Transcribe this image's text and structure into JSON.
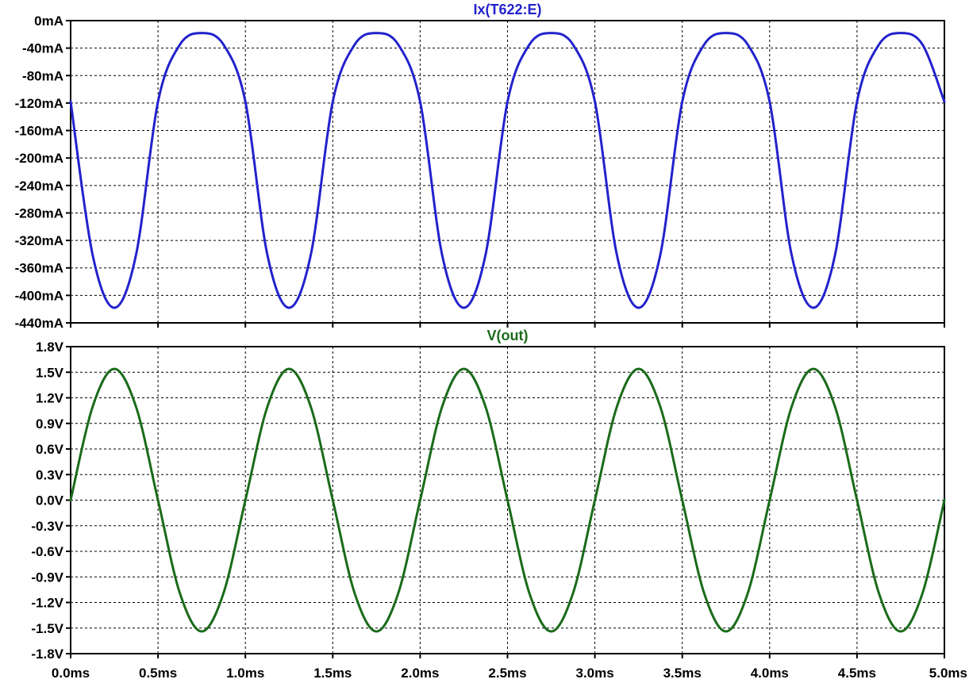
{
  "colors": {
    "background": "#ffffff",
    "axis": "#000000",
    "grid": "#000000"
  },
  "chart_data": [
    {
      "type": "line",
      "title": "Ix(T622:E)",
      "title_color": "#2222cc",
      "xlim": [
        0.0,
        5.0
      ],
      "ylim": [
        -440,
        0
      ],
      "x_tick_values": [
        0.0,
        0.5,
        1.0,
        1.5,
        2.0,
        2.5,
        3.0,
        3.5,
        4.0,
        4.5,
        5.0
      ],
      "y_tick_values": [
        0,
        -40,
        -80,
        -120,
        -160,
        -200,
        -240,
        -280,
        -320,
        -360,
        -400,
        -440
      ],
      "y_tick_labels": [
        "0mA",
        "-40mA",
        "-80mA",
        "-120mA",
        "-160mA",
        "-200mA",
        "-240mA",
        "-280mA",
        "-320mA",
        "-360mA",
        "-400mA",
        "-440mA"
      ],
      "grid": true,
      "series": [
        {
          "color": "#2222cc",
          "x": [
            0.0,
            0.125,
            0.25,
            0.375,
            0.5,
            0.625,
            0.75,
            0.875,
            1.0,
            1.125,
            1.25,
            1.375,
            1.5,
            1.625,
            1.75,
            1.875,
            2.0,
            2.125,
            2.25,
            2.375,
            2.5,
            2.625,
            2.75,
            2.875,
            3.0,
            3.125,
            3.25,
            3.375,
            3.5,
            3.625,
            3.75,
            3.875,
            4.0,
            4.125,
            4.25,
            4.375,
            4.5,
            4.625,
            4.75,
            4.875,
            5.0
          ],
          "values": [
            -118,
            -340,
            -418,
            -340,
            -118,
            -35,
            -18,
            -35,
            -118,
            -340,
            -418,
            -340,
            -118,
            -35,
            -18,
            -35,
            -118,
            -340,
            -418,
            -340,
            -118,
            -35,
            -18,
            -35,
            -118,
            -340,
            -418,
            -340,
            -118,
            -35,
            -18,
            -35,
            -118,
            -340,
            -418,
            -340,
            -118,
            -35,
            -18,
            -35,
            -118
          ]
        }
      ]
    },
    {
      "type": "line",
      "title": "V(out)",
      "title_color": "#1a6b1a",
      "xlim": [
        0.0,
        5.0
      ],
      "ylim": [
        -1.8,
        1.8
      ],
      "x_tick_values": [
        0.0,
        0.5,
        1.0,
        1.5,
        2.0,
        2.5,
        3.0,
        3.5,
        4.0,
        4.5,
        5.0
      ],
      "x_tick_labels": [
        "0.0ms",
        "0.5ms",
        "1.0ms",
        "1.5ms",
        "2.0ms",
        "2.5ms",
        "3.0ms",
        "3.5ms",
        "4.0ms",
        "4.5ms",
        "5.0ms"
      ],
      "y_tick_values": [
        1.8,
        1.5,
        1.2,
        0.9,
        0.6,
        0.3,
        0.0,
        -0.3,
        -0.6,
        -0.9,
        -1.2,
        -1.5,
        -1.8
      ],
      "y_tick_labels": [
        "1.8V",
        "1.5V",
        "1.2V",
        "0.9V",
        "0.6V",
        "0.3V",
        "0.0V",
        "-0.3V",
        "-0.6V",
        "-0.9V",
        "-1.2V",
        "-1.5V",
        "-1.8V"
      ],
      "grid": true,
      "series": [
        {
          "color": "#1a6b1a",
          "x": [
            0.0,
            0.125,
            0.25,
            0.375,
            0.5,
            0.625,
            0.75,
            0.875,
            1.0,
            1.125,
            1.25,
            1.375,
            1.5,
            1.625,
            1.75,
            1.875,
            2.0,
            2.125,
            2.25,
            2.375,
            2.5,
            2.625,
            2.75,
            2.875,
            3.0,
            3.125,
            3.25,
            3.375,
            3.5,
            3.625,
            3.75,
            3.875,
            4.0,
            4.125,
            4.25,
            4.375,
            4.5,
            4.625,
            4.75,
            4.875,
            5.0
          ],
          "values": [
            0.0,
            1.09,
            1.54,
            1.09,
            0.0,
            -1.09,
            -1.54,
            -1.09,
            0.0,
            1.09,
            1.54,
            1.09,
            0.0,
            -1.09,
            -1.54,
            -1.09,
            0.0,
            1.09,
            1.54,
            1.09,
            0.0,
            -1.09,
            -1.54,
            -1.09,
            0.0,
            1.09,
            1.54,
            1.09,
            0.0,
            -1.09,
            -1.54,
            -1.09,
            0.0,
            1.09,
            1.54,
            1.09,
            0.0,
            -1.09,
            -1.54,
            -1.09,
            0.0
          ]
        }
      ]
    }
  ]
}
